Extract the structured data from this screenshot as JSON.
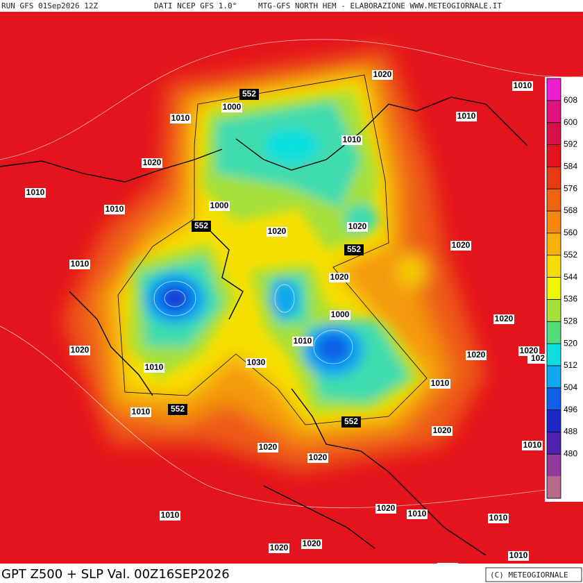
{
  "header": {
    "run": "RUN GFS 01Sep2026 12Z",
    "source": "DATI NCEP GFS 1.0°",
    "credit": "MTG-GFS NORTH HEM - ELABORAZIONE WWW.METEOGIORNALE.IT"
  },
  "footer": {
    "title": "GPT Z500 + SLP Val. 00Z16SEP2026",
    "copyright": "(C) METEOGIORNALE"
  },
  "colorbar": {
    "ticks": [
      608,
      600,
      592,
      584,
      576,
      568,
      560,
      552,
      544,
      536,
      528,
      520,
      512,
      504,
      496,
      488,
      480
    ],
    "colors": [
      "#ec1ed0",
      "#e0127c",
      "#d8104a",
      "#e4141c",
      "#e83a14",
      "#ee6410",
      "#f48a0c",
      "#f8b00a",
      "#f8dc08",
      "#f0f800",
      "#a6e03a",
      "#52dc7a",
      "#10dede",
      "#10a8ee",
      "#1060e6",
      "#1c28c8",
      "#5020b0",
      "#903c9e",
      "#b86a8a"
    ]
  },
  "map": {
    "labels": [
      "1020",
      "1010",
      "552",
      "1000",
      "1010",
      "1010",
      "1010",
      "1020",
      "1010",
      "1010",
      "1000",
      "552",
      "1020",
      "1020",
      "552",
      "1020",
      "1010",
      "1020",
      "1000",
      "1010",
      "1020",
      "1030",
      "1020",
      "1010",
      "1020",
      "1020",
      "102",
      "1010",
      "552",
      "1010",
      "552",
      "1020",
      "1020",
      "1010",
      "1020",
      "1020",
      "1010",
      "1010",
      "1010",
      "1020",
      "1020",
      "1010",
      "1010"
    ]
  }
}
